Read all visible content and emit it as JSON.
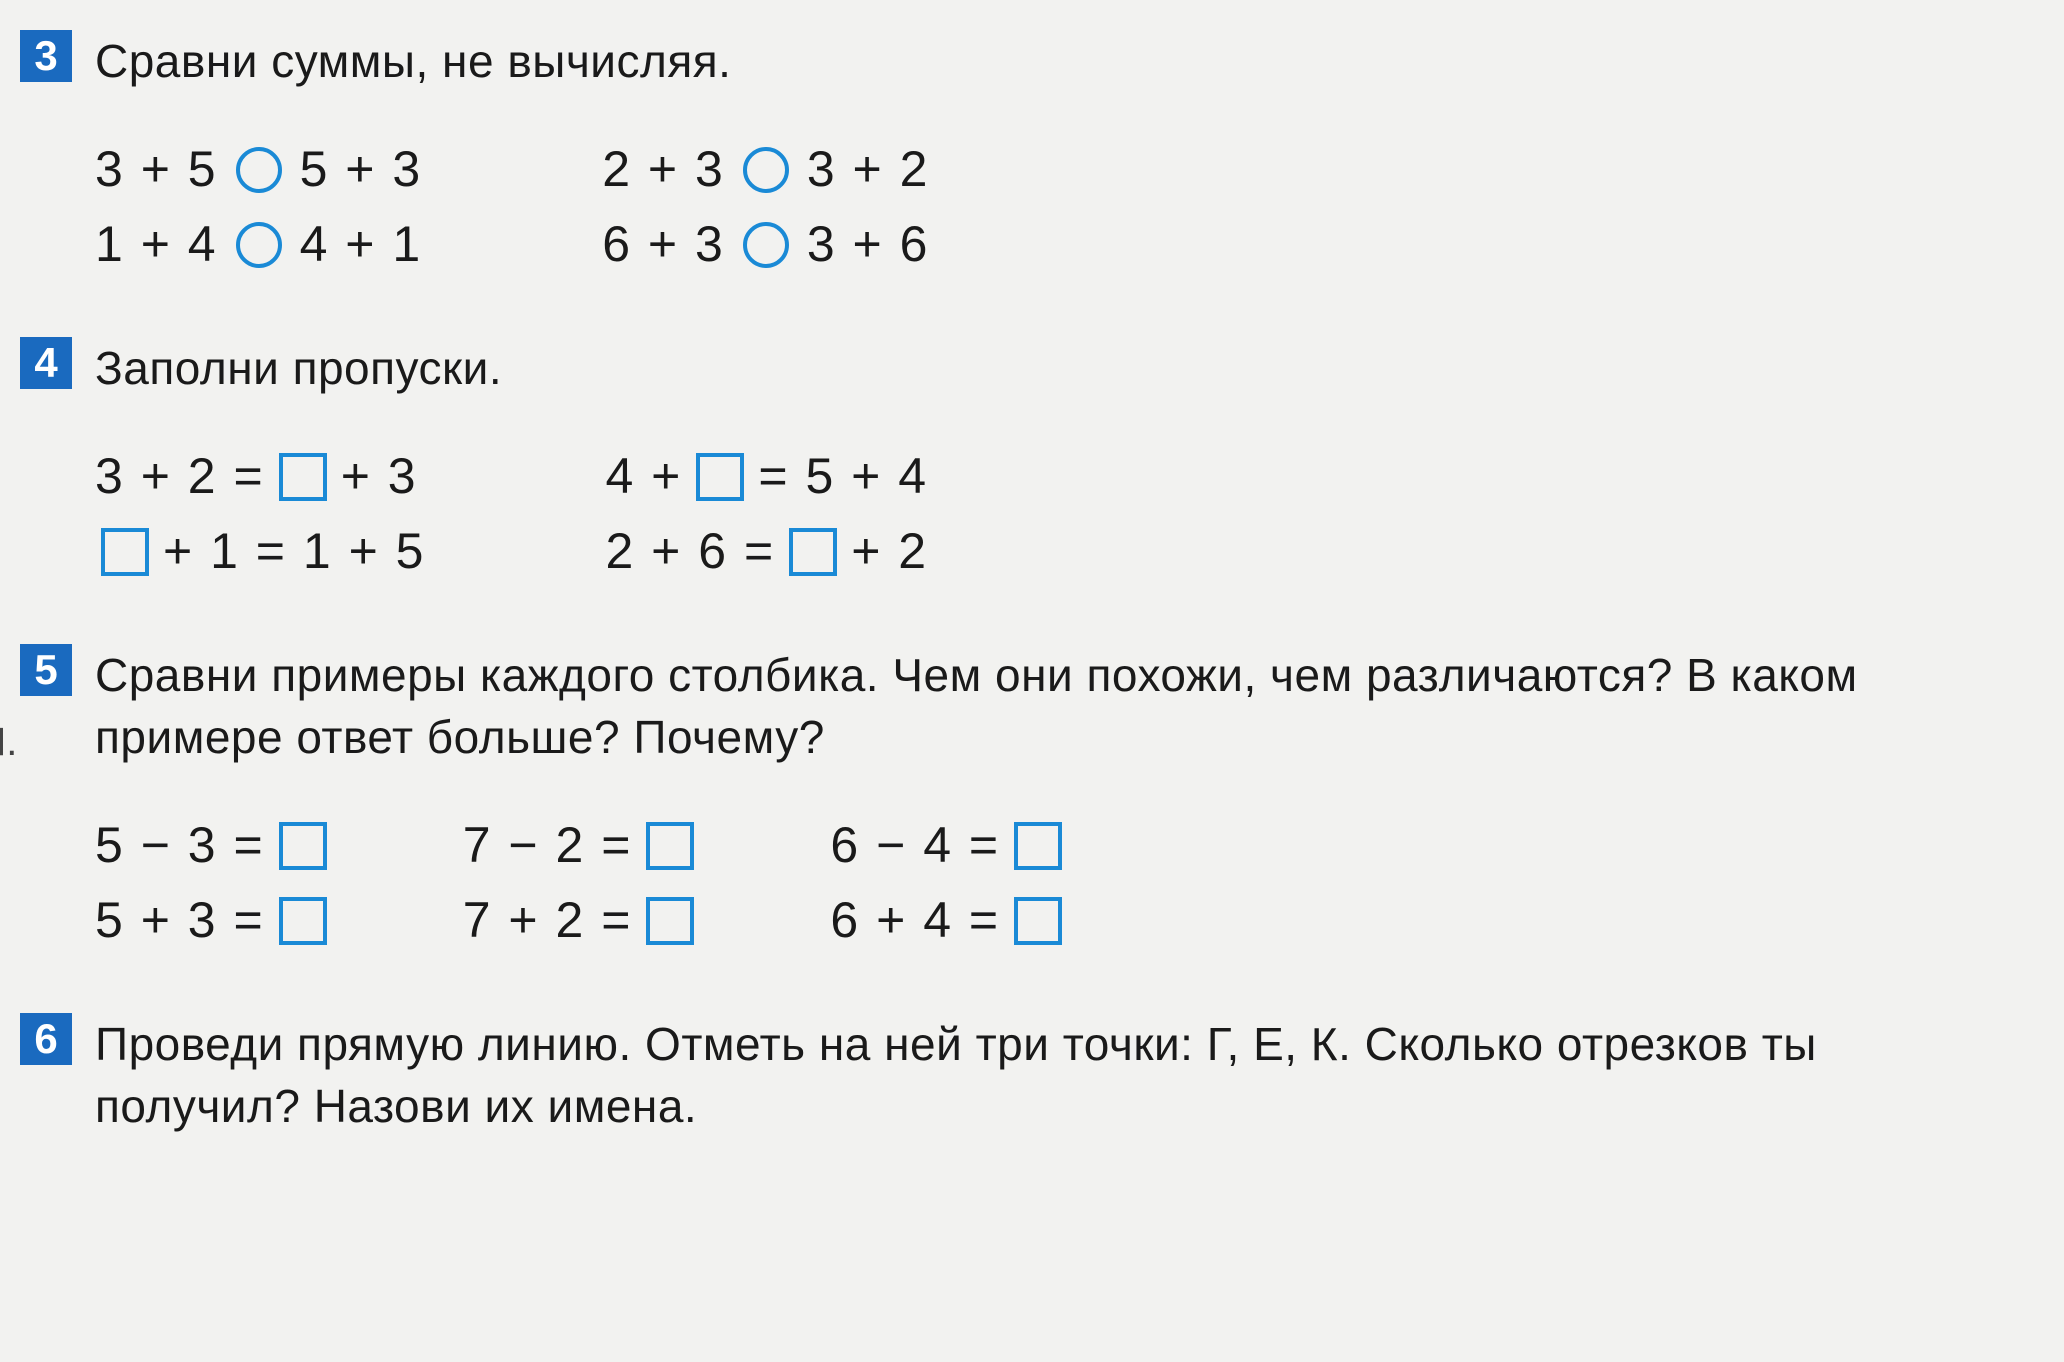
{
  "colors": {
    "background": "#f2f2f0",
    "text": "#1a1a1a",
    "number_badge_bg": "#1a6abf",
    "number_badge_text": "#ffffff",
    "shape_border": "#1a8ad6"
  },
  "typography": {
    "title_fontsize": 46,
    "math_fontsize": 50,
    "badge_fontsize": 42,
    "font_family": "Arial"
  },
  "exercises": {
    "ex3": {
      "number": "3",
      "title": "Сравни суммы, не вычисляя.",
      "col1": {
        "row1": {
          "left": "3 + 5",
          "right": "5 + 3"
        },
        "row2": {
          "left": "1 + 4",
          "right": "4 + 1"
        }
      },
      "col2": {
        "row1": {
          "left": "2 + 3",
          "right": "3 + 2"
        },
        "row2": {
          "left": "6 + 3",
          "right": "3 + 6"
        }
      }
    },
    "ex4": {
      "number": "4",
      "title": "Заполни пропуски.",
      "col1": {
        "row1": {
          "a": "3 + 2 =",
          "b": "+ 3"
        },
        "row2": {
          "a": "+ 1 = 1 + 5"
        }
      },
      "col2": {
        "row1": {
          "a": "4 +",
          "b": "= 5 + 4"
        },
        "row2": {
          "a": "2 + 6 =",
          "b": "+ 2"
        }
      }
    },
    "ex5": {
      "number": "5",
      "title": "Сравни примеры каждого столбика. Чем они похожи, чем различаются? В каком примере ответ больше? Почему?",
      "col1": {
        "row1": "5 − 3 =",
        "row2": "5 + 3 ="
      },
      "col2": {
        "row1": "7 − 2 =",
        "row2": "7 + 2 ="
      },
      "col3": {
        "row1": "6 − 4 =",
        "row2": "6 + 4 ="
      }
    },
    "ex6": {
      "number": "6",
      "title": "Проведи прямую линию. Отметь на ней три точки: Г, Е, К. Сколько отрезков ты получил? Назови их имена."
    }
  },
  "side_mark": "Л."
}
